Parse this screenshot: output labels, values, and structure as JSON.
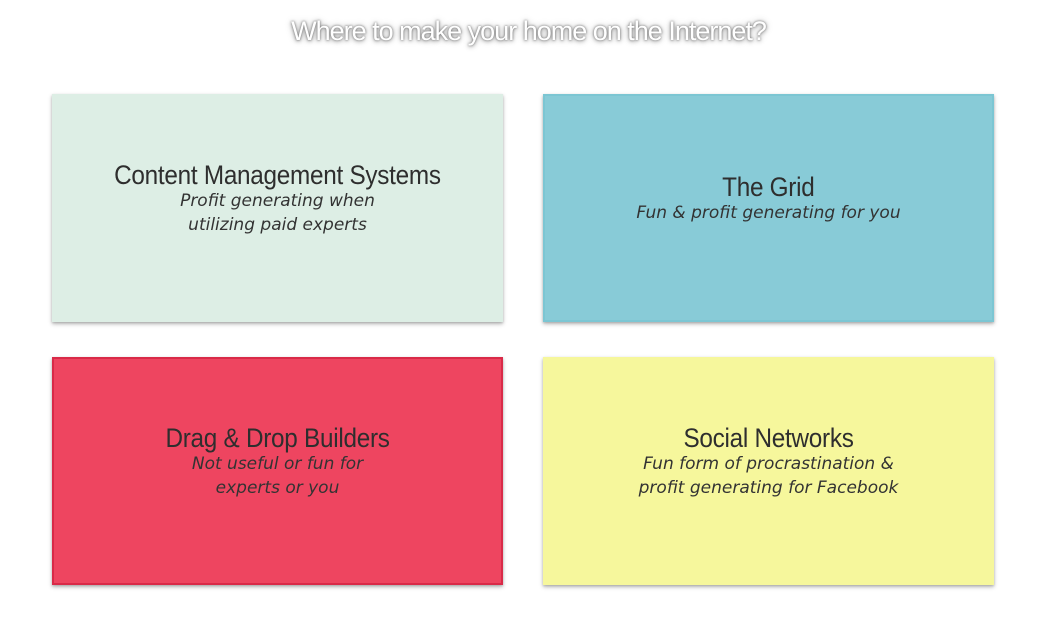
{
  "page": {
    "title": "Where to make your home on the Internet?"
  },
  "cards": [
    {
      "title": "Content Management Systems",
      "subtitle": "Profit generating when\nutilizing paid experts",
      "color": "#ddeee5"
    },
    {
      "title": "The Grid",
      "subtitle": "Fun & profit generating for you",
      "color": "#88cbd7"
    },
    {
      "title": "Drag & Drop Builders",
      "subtitle": "Not useful or fun for\nexperts or you",
      "color": "#ee4560"
    },
    {
      "title": "Social Networks",
      "subtitle": "Fun form of procrastination &\nprofit generating for Facebook",
      "color": "#f6f79c"
    }
  ]
}
